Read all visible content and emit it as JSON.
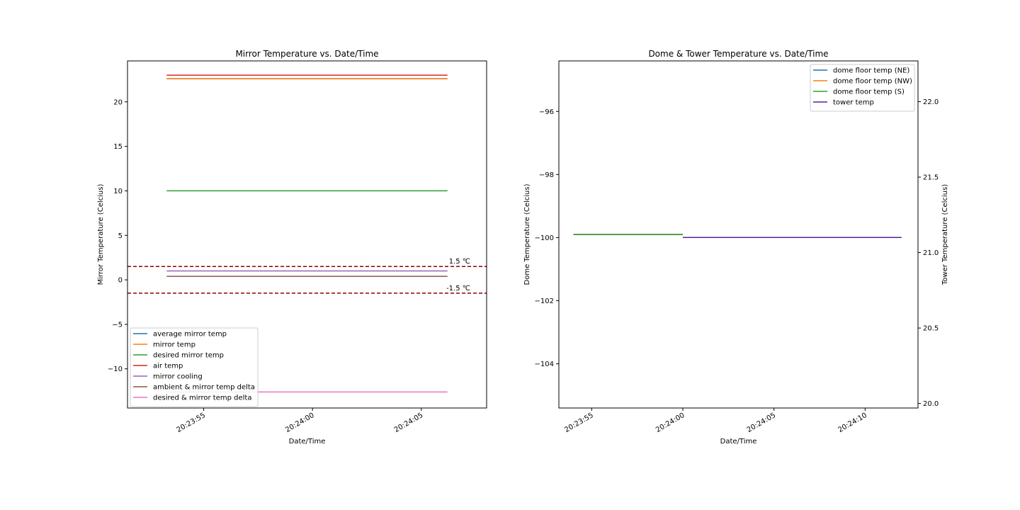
{
  "chart_data": [
    {
      "type": "line",
      "title": "Mirror Temperature vs. Date/Time",
      "xlabel": "Date/Time",
      "ylabel": "Mirror Temperature (Celcius)",
      "x_ticks": [
        "20:23:55",
        "20:24:00",
        "20:24:05"
      ],
      "x_tick_seconds": [
        55,
        60,
        65
      ],
      "x_range_seconds": [
        51.5,
        68.0
      ],
      "x_range": [
        "20:23:51.5",
        "20:24:08"
      ],
      "ylim": [
        -14.4,
        24.6
      ],
      "y_ticks": [
        -10,
        -5,
        0,
        5,
        10,
        15,
        20
      ],
      "y_tick_labels": [
        "−10",
        "−5",
        "0",
        "5",
        "10",
        "15",
        "20"
      ],
      "grid": false,
      "legend_position": "lower-left",
      "series": [
        {
          "name": "average mirror temp",
          "color": "#1f77b4",
          "x": [
            "20:23:53.3",
            "20:24:06.2"
          ],
          "y": [
            22.6,
            22.6
          ]
        },
        {
          "name": "mirror temp",
          "color": "#ff7f0e",
          "x": [
            "20:23:53.3",
            "20:24:06.2"
          ],
          "y": [
            22.6,
            22.6
          ]
        },
        {
          "name": "desired mirror temp",
          "color": "#2ca02c",
          "x": [
            "20:23:53.3",
            "20:24:06.2"
          ],
          "y": [
            10.0,
            10.0
          ]
        },
        {
          "name": "air temp",
          "color": "#d62728",
          "x": [
            "20:23:53.3",
            "20:24:06.2"
          ],
          "y": [
            23.0,
            23.0
          ]
        },
        {
          "name": "mirror cooling",
          "color": "#9467bd",
          "x": [
            "20:23:53.3",
            "20:24:06.2"
          ],
          "y": [
            1.0,
            1.0
          ]
        },
        {
          "name": "ambient & mirror temp delta",
          "color": "#8c564b",
          "x": [
            "20:23:53.3",
            "20:24:06.2"
          ],
          "y": [
            0.4,
            0.4
          ]
        },
        {
          "name": "desired & mirror temp delta",
          "color": "#e377c2",
          "x": [
            "20:23:53.3",
            "20:24:06.2"
          ],
          "y": [
            -12.6,
            -12.6
          ]
        }
      ],
      "reference_lines": [
        {
          "y": 1.5,
          "label": "1.5 ℃",
          "color": "#8b0000",
          "style": "dashed"
        },
        {
          "y": -1.5,
          "label": "-1.5 ℃",
          "color": "#8b0000",
          "style": "dashed"
        }
      ]
    },
    {
      "type": "line",
      "title": "Dome & Tower Temperature vs. Date/Time",
      "xlabel": "Date/Time",
      "ylabel": "Dome Temperature (Celcius)",
      "y2label": "Tower Temperature (Celcius)",
      "x_ticks": [
        "20:23:55",
        "20:24:00",
        "20:24:05",
        "20:24:10"
      ],
      "x_tick_seconds": [
        55,
        60,
        65,
        70
      ],
      "x_range_seconds": [
        53.2,
        72.9
      ],
      "x_range": [
        "20:23:53.2",
        "20:24:12.9"
      ],
      "ylim": [
        -105.4,
        -94.4
      ],
      "y_ticks": [
        -104,
        -102,
        -100,
        -98,
        -96
      ],
      "y_tick_labels": [
        "−104",
        "−102",
        "−100",
        "−98",
        "−96"
      ],
      "y2lim": [
        19.97,
        22.27
      ],
      "y2_ticks": [
        20.0,
        20.5,
        21.0,
        21.5,
        22.0
      ],
      "y2_tick_labels": [
        "20.0",
        "20.5",
        "21.0",
        "21.5",
        "22.0"
      ],
      "grid": false,
      "legend_position": "top-right",
      "series": [
        {
          "name": "dome floor temp (NE)",
          "color": "#1f77b4",
          "axis": "left",
          "x": [
            "20:23:54",
            "20:24:00"
          ],
          "y": [
            -99.9,
            -99.9
          ]
        },
        {
          "name": "dome floor temp (NW)",
          "color": "#ff7f0e",
          "axis": "left",
          "x": [
            "20:23:54",
            "20:24:00"
          ],
          "y": [
            -99.9,
            -99.9
          ]
        },
        {
          "name": "dome floor temp (S)",
          "color": "#2ca02c",
          "axis": "left",
          "x": [
            "20:23:54",
            "20:24:00"
          ],
          "y": [
            -99.9,
            -99.9
          ]
        },
        {
          "name": "tower temp",
          "color": "#5b1f9b",
          "axis": "right",
          "x": [
            "20:24:00",
            "20:24:12"
          ],
          "y": [
            21.1,
            21.1
          ]
        }
      ]
    }
  ]
}
